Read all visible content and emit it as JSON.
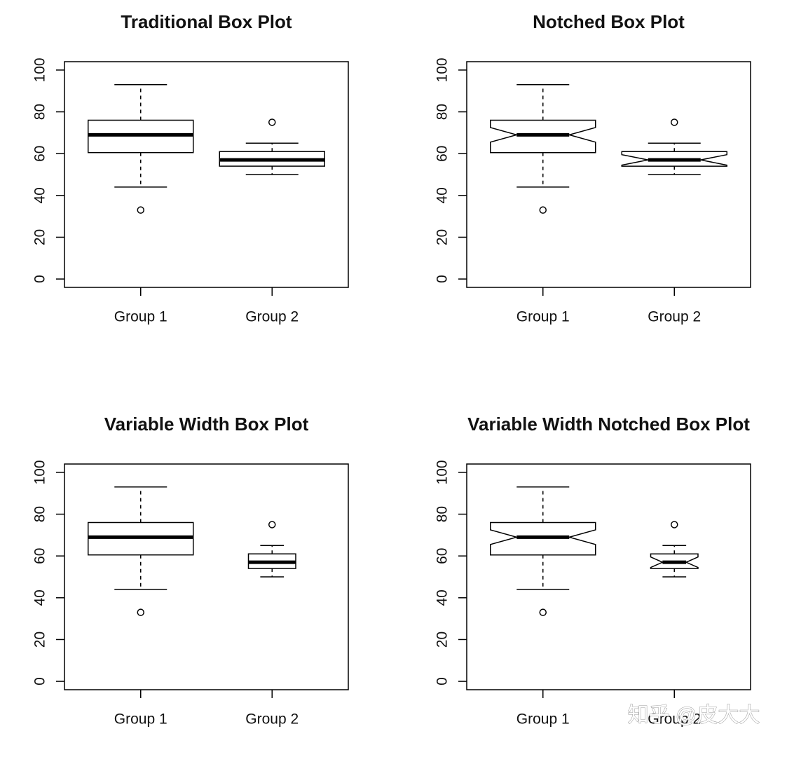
{
  "chart_data": [
    {
      "type": "box",
      "title": "Traditional Box Plot",
      "categories": [
        "Group 1",
        "Group 2"
      ],
      "boxes": [
        {
          "whisker_low": 44,
          "q1": 60.5,
          "median": 69,
          "q3": 76,
          "whisker_high": 93,
          "outliers": [
            33
          ]
        },
        {
          "whisker_low": 50,
          "q1": 54,
          "median": 57,
          "q3": 61,
          "whisker_high": 65,
          "outliers": [
            75
          ]
        }
      ],
      "ylim": [
        -4,
        104
      ],
      "yticks": [
        0,
        20,
        40,
        60,
        80,
        100
      ],
      "color": "#000000"
    },
    {
      "type": "box",
      "title": "Notched Box Plot",
      "categories": [
        "Group 1",
        "Group 2"
      ],
      "boxes": [
        {
          "whisker_low": 44,
          "q1": 60.5,
          "median": 69,
          "q3": 76,
          "whisker_high": 93,
          "outliers": [
            33
          ],
          "notch": [
            65.5,
            72.5
          ]
        },
        {
          "whisker_low": 50,
          "q1": 54,
          "median": 57,
          "q3": 61,
          "whisker_high": 65,
          "outliers": [
            75
          ],
          "notch": [
            54.5,
            59.5
          ]
        }
      ],
      "ylim": [
        -4,
        104
      ],
      "yticks": [
        0,
        20,
        40,
        60,
        80,
        100
      ],
      "color": "#000000"
    },
    {
      "type": "box",
      "title": "Variable Width Box Plot",
      "categories": [
        "Group 1",
        "Group 2"
      ],
      "boxes": [
        {
          "whisker_low": 44,
          "q1": 60.5,
          "median": 69,
          "q3": 76,
          "whisker_high": 93,
          "outliers": [
            33
          ],
          "width": 1
        },
        {
          "whisker_low": 50,
          "q1": 54,
          "median": 57,
          "q3": 61,
          "whisker_high": 65,
          "outliers": [
            75
          ],
          "width": 0.45
        }
      ],
      "ylim": [
        -4,
        104
      ],
      "yticks": [
        0,
        20,
        40,
        60,
        80,
        100
      ],
      "color": "#000000"
    },
    {
      "type": "box",
      "title": "Variable Width Notched Box Plot",
      "categories": [
        "Group 1",
        "Group 2"
      ],
      "boxes": [
        {
          "whisker_low": 44,
          "q1": 60.5,
          "median": 69,
          "q3": 76,
          "whisker_high": 93,
          "outliers": [
            33
          ],
          "notch": [
            65.5,
            72.5
          ],
          "width": 1
        },
        {
          "whisker_low": 50,
          "q1": 54,
          "median": 57,
          "q3": 61,
          "whisker_high": 65,
          "outliers": [
            75
          ],
          "notch": [
            54.5,
            59.5
          ],
          "width": 0.45
        }
      ],
      "ylim": [
        -4,
        104
      ],
      "yticks": [
        0,
        20,
        40,
        60,
        80,
        100
      ],
      "color": "#000000"
    }
  ],
  "watermark": "知乎 @皮大大"
}
